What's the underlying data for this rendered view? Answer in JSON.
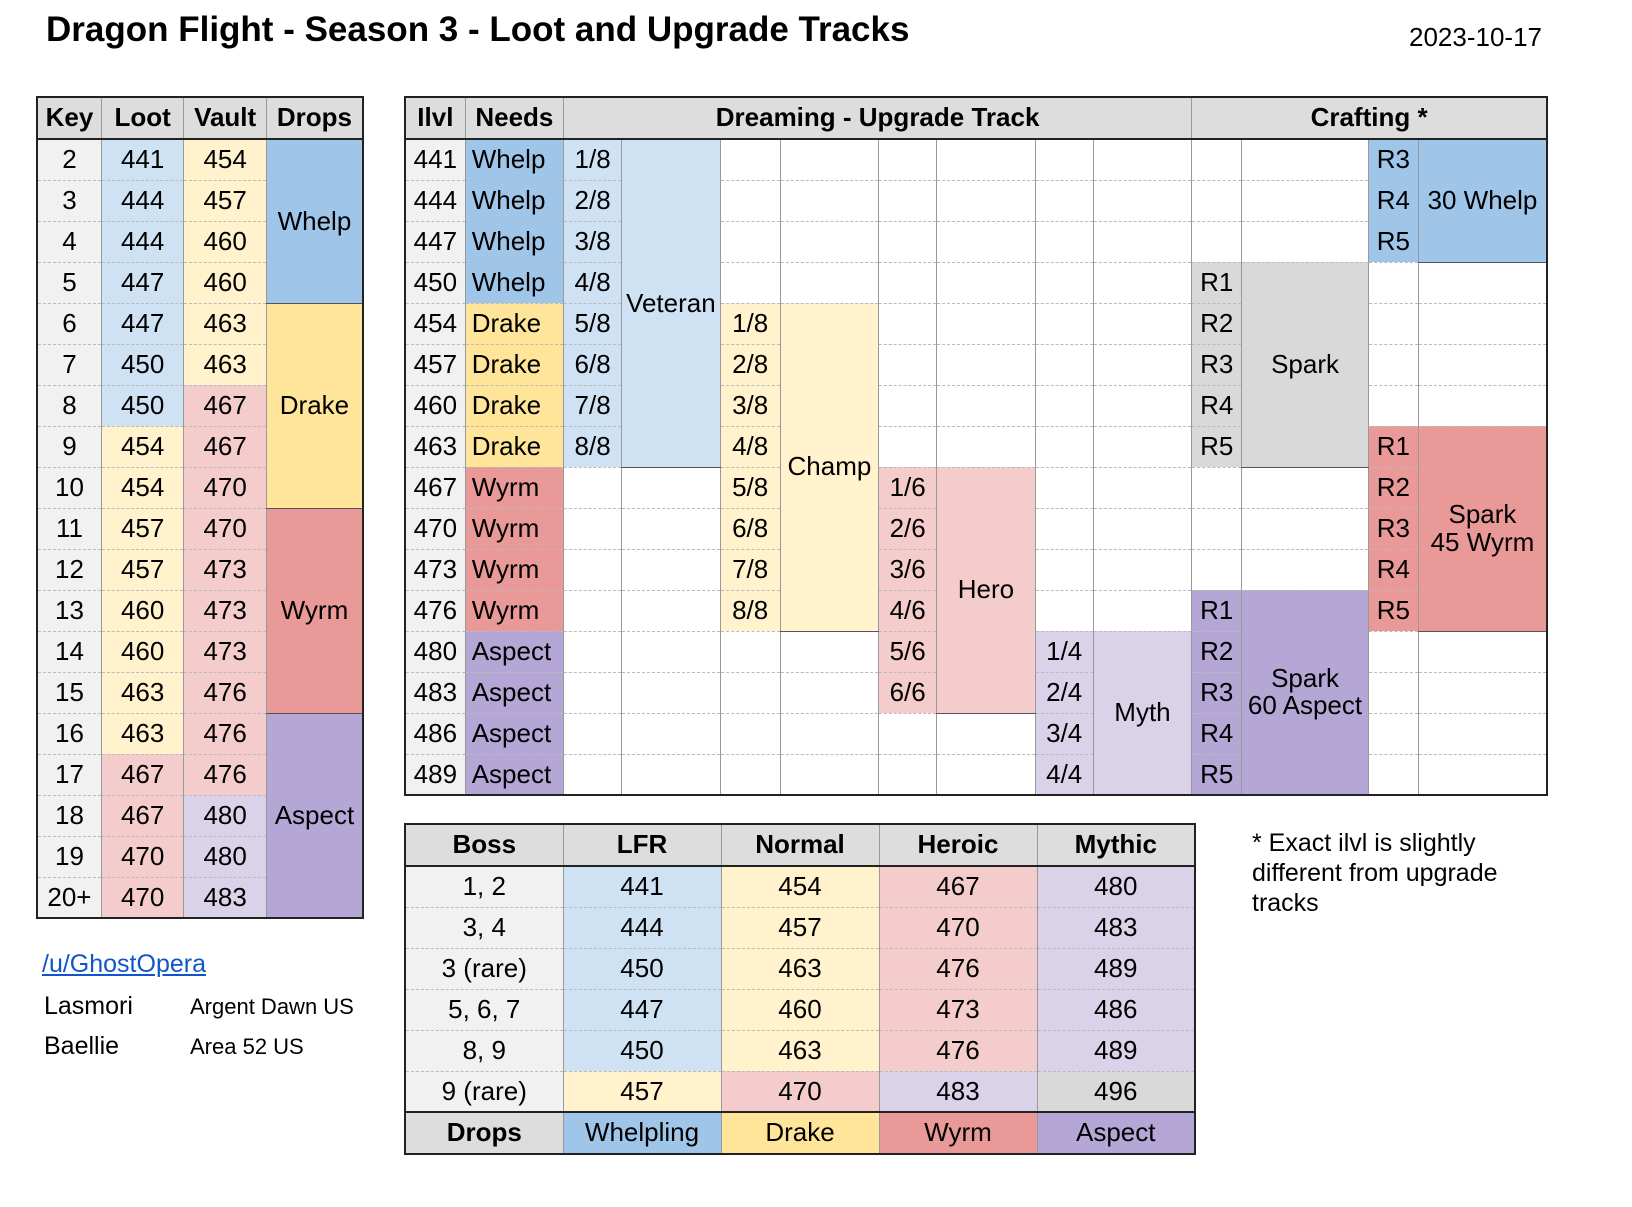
{
  "title": "Dragon Flight - Season 3 - Loot and Upgrade Tracks",
  "date": "2023-10-17",
  "key_table": {
    "headers": [
      "Key",
      "Loot",
      "Vault",
      "Drops"
    ],
    "rows": [
      {
        "key": "2",
        "loot": "441",
        "vault": "454"
      },
      {
        "key": "3",
        "loot": "444",
        "vault": "457"
      },
      {
        "key": "4",
        "loot": "444",
        "vault": "460"
      },
      {
        "key": "5",
        "loot": "447",
        "vault": "460"
      },
      {
        "key": "6",
        "loot": "447",
        "vault": "463"
      },
      {
        "key": "7",
        "loot": "450",
        "vault": "463"
      },
      {
        "key": "8",
        "loot": "450",
        "vault": "467"
      },
      {
        "key": "9",
        "loot": "454",
        "vault": "467"
      },
      {
        "key": "10",
        "loot": "454",
        "vault": "470"
      },
      {
        "key": "11",
        "loot": "457",
        "vault": "470"
      },
      {
        "key": "12",
        "loot": "457",
        "vault": "473"
      },
      {
        "key": "13",
        "loot": "460",
        "vault": "473"
      },
      {
        "key": "14",
        "loot": "460",
        "vault": "473"
      },
      {
        "key": "15",
        "loot": "463",
        "vault": "476"
      },
      {
        "key": "16",
        "loot": "463",
        "vault": "476"
      },
      {
        "key": "17",
        "loot": "467",
        "vault": "476"
      },
      {
        "key": "18",
        "loot": "467",
        "vault": "480"
      },
      {
        "key": "19",
        "loot": "470",
        "vault": "480"
      },
      {
        "key": "20+",
        "loot": "470",
        "vault": "483"
      }
    ],
    "drops": [
      "Whelp",
      "Drake",
      "Wyrm",
      "Aspect"
    ]
  },
  "upgrade_table": {
    "headers": {
      "ilvl": "Ilvl",
      "needs": "Needs",
      "track": "Dreaming - Upgrade Track",
      "crafting": "Crafting *"
    },
    "ilvls": [
      "441",
      "444",
      "447",
      "450",
      "454",
      "457",
      "460",
      "463",
      "467",
      "470",
      "473",
      "476",
      "480",
      "483",
      "486",
      "489"
    ],
    "needs": [
      "Whelp",
      "Whelp",
      "Whelp",
      "Whelp",
      "Drake",
      "Drake",
      "Drake",
      "Drake",
      "Wyrm",
      "Wyrm",
      "Wyrm",
      "Wyrm",
      "Aspect",
      "Aspect",
      "Aspect",
      "Aspect"
    ],
    "veteran": {
      "label": "Veteran",
      "steps": [
        "1/8",
        "2/8",
        "3/8",
        "4/8",
        "5/8",
        "6/8",
        "7/8",
        "8/8"
      ]
    },
    "champ": {
      "label": "Champ",
      "steps": [
        "1/8",
        "2/8",
        "3/8",
        "4/8",
        "5/8",
        "6/8",
        "7/8",
        "8/8"
      ]
    },
    "hero": {
      "label": "Hero",
      "steps": [
        "1/6",
        "2/6",
        "3/6",
        "4/6",
        "5/6",
        "6/6"
      ]
    },
    "myth": {
      "label": "Myth",
      "steps": [
        "1/4",
        "2/4",
        "3/4",
        "4/4"
      ]
    },
    "crafting": {
      "whelp": {
        "label": "30 Whelp",
        "ranks": [
          "R3",
          "R4",
          "R5"
        ]
      },
      "spark": {
        "label": "Spark",
        "ranks": [
          "R1",
          "R2",
          "R3",
          "R4",
          "R5"
        ]
      },
      "wyrm": {
        "label_1": "Spark",
        "label_2": "45 Wyrm",
        "ranks": [
          "R1",
          "R2",
          "R3",
          "R4",
          "R5"
        ]
      },
      "aspect": {
        "label_1": "Spark",
        "label_2": "60 Aspect",
        "ranks": [
          "R1",
          "R2",
          "R3",
          "R4",
          "R5"
        ]
      }
    }
  },
  "boss_table": {
    "headers": [
      "Boss",
      "LFR",
      "Normal",
      "Heroic",
      "Mythic"
    ],
    "rows": [
      [
        "1, 2",
        "441",
        "454",
        "467",
        "480"
      ],
      [
        "3, 4",
        "444",
        "457",
        "470",
        "483"
      ],
      [
        "3 (rare)",
        "450",
        "463",
        "476",
        "489"
      ],
      [
        "5, 6, 7",
        "447",
        "460",
        "473",
        "486"
      ],
      [
        "8, 9",
        "450",
        "463",
        "476",
        "489"
      ],
      [
        "9 (rare)",
        "457",
        "470",
        "483",
        "496"
      ]
    ],
    "drops_row": [
      "Drops",
      "Whelpling",
      "Drake",
      "Wyrm",
      "Aspect"
    ]
  },
  "note": "* Exact ilvl is slightly different from upgrade tracks",
  "credits": {
    "link": "/u/GhostOpera",
    "people": [
      {
        "name": "Lasmori",
        "realm": "Argent Dawn US"
      },
      {
        "name": "Baellie",
        "realm": "Area 52 US"
      }
    ]
  }
}
